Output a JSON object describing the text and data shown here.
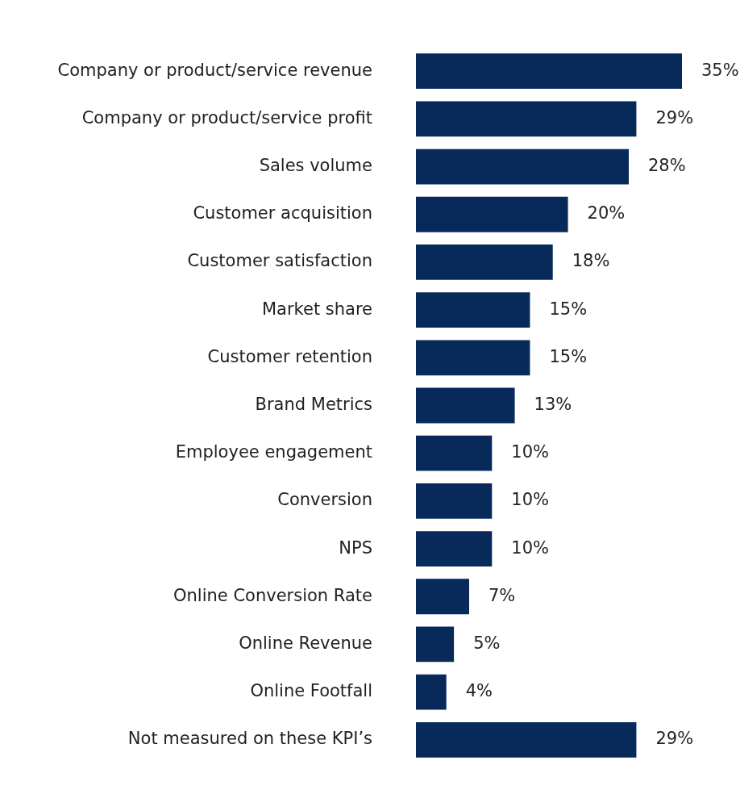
{
  "chart_data": {
    "type": "bar",
    "orientation": "horizontal",
    "categories": [
      "Company or product/service revenue",
      "Company or product/service profit",
      "Sales volume",
      "Customer acquisition",
      "Customer satisfaction",
      "Market share",
      "Customer retention",
      "Brand Metrics",
      "Employee engagement",
      "Conversion",
      "NPS",
      "Online Conversion Rate",
      "Online Revenue",
      "Online Footfall",
      "Not measured on these KPI’s"
    ],
    "values": [
      35,
      29,
      28,
      20,
      18,
      15,
      15,
      13,
      10,
      10,
      10,
      7,
      5,
      4,
      29
    ],
    "value_labels": [
      "35%",
      "29%",
      "28%",
      "20%",
      "18%",
      "15%",
      "15%",
      "13%",
      "10%",
      "10%",
      "10%",
      "7%",
      "5%",
      "4%",
      "29%"
    ],
    "color": "#072a5b",
    "legend": false,
    "tick_labels": "y"
  }
}
